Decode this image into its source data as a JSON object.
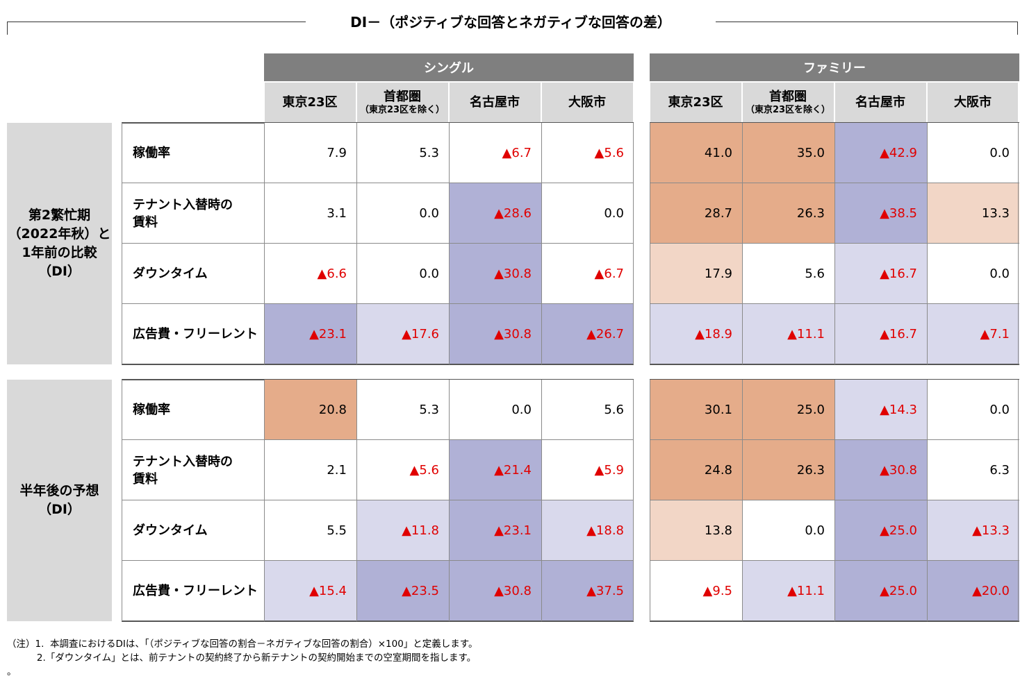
{
  "title": "DI－（ポジティブな回答とネガティブな回答の差）",
  "groups": [
    {
      "label": "シングル",
      "columns": [
        {
          "label": "東京23区",
          "sub": ""
        },
        {
          "label": "首都圏",
          "sub": "（東京23区を除く）"
        },
        {
          "label": "名古屋市",
          "sub": ""
        },
        {
          "label": "大阪市",
          "sub": ""
        }
      ]
    },
    {
      "label": "ファミリー",
      "columns": [
        {
          "label": "東京23区",
          "sub": ""
        },
        {
          "label": "首都圏",
          "sub": "（東京23区を除く）"
        },
        {
          "label": "名古屋市",
          "sub": ""
        },
        {
          "label": "大阪市",
          "sub": ""
        }
      ]
    }
  ],
  "colors": {
    "header_group": "#7f7f7f",
    "header_col": "#d9d9d9",
    "pos_strong": "#e5ac8a",
    "pos_light": "#f2d6c6",
    "neg_strong": "#b0b1d6",
    "neg_light": "#d9d9ec",
    "neg_text": "#e00000"
  },
  "sections": [
    {
      "label": "第2繁忙期\n（2022年秋）と\n1年前の比較\n（DI）",
      "rows": [
        {
          "label": "稼働率",
          "cells": [
            {
              "v": "7.9",
              "neg": false,
              "bg": ""
            },
            {
              "v": "5.3",
              "neg": false,
              "bg": ""
            },
            {
              "v": "▲6.7",
              "neg": true,
              "bg": ""
            },
            {
              "v": "▲5.6",
              "neg": true,
              "bg": ""
            },
            {
              "v": "41.0",
              "neg": false,
              "bg": "pos_strong"
            },
            {
              "v": "35.0",
              "neg": false,
              "bg": "pos_strong"
            },
            {
              "v": "▲42.9",
              "neg": true,
              "bg": "neg_strong"
            },
            {
              "v": "0.0",
              "neg": false,
              "bg": ""
            }
          ]
        },
        {
          "label": "テナント入替時の\n賃料",
          "cells": [
            {
              "v": "3.1",
              "neg": false,
              "bg": ""
            },
            {
              "v": "0.0",
              "neg": false,
              "bg": ""
            },
            {
              "v": "▲28.6",
              "neg": true,
              "bg": "neg_strong"
            },
            {
              "v": "0.0",
              "neg": false,
              "bg": ""
            },
            {
              "v": "28.7",
              "neg": false,
              "bg": "pos_strong"
            },
            {
              "v": "26.3",
              "neg": false,
              "bg": "pos_strong"
            },
            {
              "v": "▲38.5",
              "neg": true,
              "bg": "neg_strong"
            },
            {
              "v": "13.3",
              "neg": false,
              "bg": "pos_light"
            }
          ]
        },
        {
          "label": "ダウンタイム",
          "cells": [
            {
              "v": "▲6.6",
              "neg": true,
              "bg": ""
            },
            {
              "v": "0.0",
              "neg": false,
              "bg": ""
            },
            {
              "v": "▲30.8",
              "neg": true,
              "bg": "neg_strong"
            },
            {
              "v": "▲6.7",
              "neg": true,
              "bg": ""
            },
            {
              "v": "17.9",
              "neg": false,
              "bg": "pos_light"
            },
            {
              "v": "5.6",
              "neg": false,
              "bg": ""
            },
            {
              "v": "▲16.7",
              "neg": true,
              "bg": "neg_light"
            },
            {
              "v": "0.0",
              "neg": false,
              "bg": ""
            }
          ]
        },
        {
          "label": "広告費・フリーレント",
          "cells": [
            {
              "v": "▲23.1",
              "neg": true,
              "bg": "neg_strong"
            },
            {
              "v": "▲17.6",
              "neg": true,
              "bg": "neg_light"
            },
            {
              "v": "▲30.8",
              "neg": true,
              "bg": "neg_strong"
            },
            {
              "v": "▲26.7",
              "neg": true,
              "bg": "neg_strong"
            },
            {
              "v": "▲18.9",
              "neg": true,
              "bg": "neg_light"
            },
            {
              "v": "▲11.1",
              "neg": true,
              "bg": "neg_light"
            },
            {
              "v": "▲16.7",
              "neg": true,
              "bg": "neg_light"
            },
            {
              "v": "▲7.1",
              "neg": true,
              "bg": "neg_light"
            }
          ]
        }
      ]
    },
    {
      "label": "半年後の予想\n（DI）",
      "rows": [
        {
          "label": "稼働率",
          "cells": [
            {
              "v": "20.8",
              "neg": false,
              "bg": "pos_strong"
            },
            {
              "v": "5.3",
              "neg": false,
              "bg": ""
            },
            {
              "v": "0.0",
              "neg": false,
              "bg": ""
            },
            {
              "v": "5.6",
              "neg": false,
              "bg": ""
            },
            {
              "v": "30.1",
              "neg": false,
              "bg": "pos_strong"
            },
            {
              "v": "25.0",
              "neg": false,
              "bg": "pos_strong"
            },
            {
              "v": "▲14.3",
              "neg": true,
              "bg": "neg_light"
            },
            {
              "v": "0.0",
              "neg": false,
              "bg": ""
            }
          ]
        },
        {
          "label": "テナント入替時の\n賃料",
          "cells": [
            {
              "v": "2.1",
              "neg": false,
              "bg": ""
            },
            {
              "v": "▲5.6",
              "neg": true,
              "bg": ""
            },
            {
              "v": "▲21.4",
              "neg": true,
              "bg": "neg_strong"
            },
            {
              "v": "▲5.9",
              "neg": true,
              "bg": ""
            },
            {
              "v": "24.8",
              "neg": false,
              "bg": "pos_strong"
            },
            {
              "v": "26.3",
              "neg": false,
              "bg": "pos_strong"
            },
            {
              "v": "▲30.8",
              "neg": true,
              "bg": "neg_strong"
            },
            {
              "v": "6.3",
              "neg": false,
              "bg": ""
            }
          ]
        },
        {
          "label": "ダウンタイム",
          "cells": [
            {
              "v": "5.5",
              "neg": false,
              "bg": ""
            },
            {
              "v": "▲11.8",
              "neg": true,
              "bg": "neg_light"
            },
            {
              "v": "▲23.1",
              "neg": true,
              "bg": "neg_strong"
            },
            {
              "v": "▲18.8",
              "neg": true,
              "bg": "neg_light"
            },
            {
              "v": "13.8",
              "neg": false,
              "bg": "pos_light"
            },
            {
              "v": "0.0",
              "neg": false,
              "bg": ""
            },
            {
              "v": "▲25.0",
              "neg": true,
              "bg": "neg_strong"
            },
            {
              "v": "▲13.3",
              "neg": true,
              "bg": "neg_light"
            }
          ]
        },
        {
          "label": "広告費・フリーレント",
          "cells": [
            {
              "v": "▲15.4",
              "neg": true,
              "bg": "neg_light"
            },
            {
              "v": "▲23.5",
              "neg": true,
              "bg": "neg_strong"
            },
            {
              "v": "▲30.8",
              "neg": true,
              "bg": "neg_strong"
            },
            {
              "v": "▲37.5",
              "neg": true,
              "bg": "neg_strong"
            },
            {
              "v": "▲9.5",
              "neg": true,
              "bg": ""
            },
            {
              "v": "▲11.1",
              "neg": true,
              "bg": "neg_light"
            },
            {
              "v": "▲25.0",
              "neg": true,
              "bg": "neg_strong"
            },
            {
              "v": "▲20.0",
              "neg": true,
              "bg": "neg_strong"
            }
          ]
        }
      ]
    }
  ],
  "notes": [
    "（注）1.  本調査におけるDIは、「（ポジティブな回答の割合－ネガティブな回答の割合）×100」と定義します。",
    "          2.「ダウンタイム」とは、前テナントの契約終了から新テナントの契約開始までの空室期間を指します。",
    "。"
  ]
}
